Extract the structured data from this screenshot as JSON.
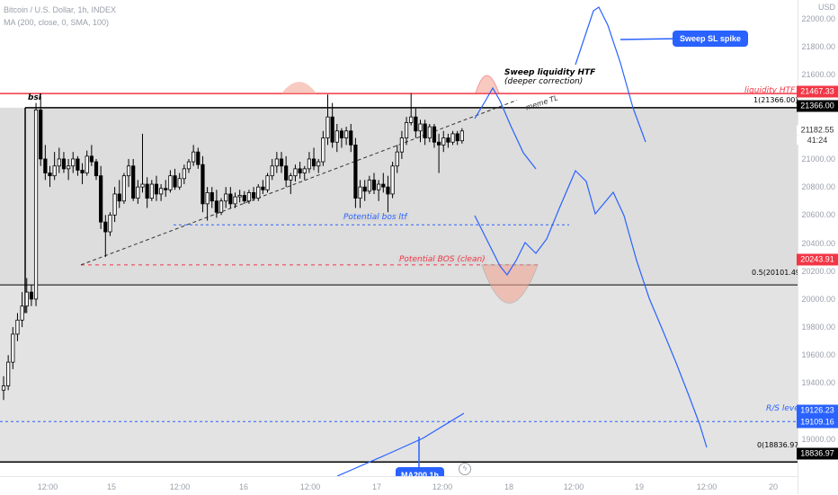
{
  "header": {
    "symbol_line": "Bitcoin / U.S. Dollar, 1h, INDEX",
    "indicator_line": "MA (200, close, 0, SMA, 100)"
  },
  "axis": {
    "currency": "USD",
    "price_ticks": [
      "22000.00",
      "21800.00",
      "21600.00",
      "21400.00",
      "21200.00",
      "21000.00",
      "20800.00",
      "20600.00",
      "20400.00",
      "20200.00",
      "20000.00",
      "19800.00",
      "19600.00",
      "19400.00",
      "19200.00",
      "19000.00"
    ],
    "time_ticks": [
      "12:00",
      "15",
      "12:00",
      "16",
      "12:00",
      "17",
      "12:00",
      "18",
      "12:00",
      "19",
      "12:00",
      "20"
    ]
  },
  "price_tags": {
    "liquidity": "21467.33",
    "level_1": "21366.00",
    "last_price": "21182.55",
    "countdown": "41:24",
    "bos": "20243.91",
    "rs_a": "19126.23",
    "rs_b": "19109.16",
    "level_0": "18836.97"
  },
  "colors": {
    "up": "#ffffff",
    "down": "#000000",
    "accent_blue": "#2962ff",
    "liquidity_red": "#f23645",
    "zone_gray": "#d9d9d9",
    "bubble_red": "#f4a896"
  },
  "annotations": {
    "bsl": "bsl",
    "sweep_title": "Sweep liquidity HTF",
    "sweep_sub": "(deeper correction)",
    "meme_tl": "meme TL",
    "liquidity_htf": "liquidity HTF",
    "fib_1": "1(21366.00)",
    "fib_05": "0.5(20101.49)",
    "fib_0": "0(18836.97)",
    "potential_bos_ltf": "Potential bos ltf",
    "potential_bos_clean": "Potential BOS (clean)",
    "rs_level": "R/S level",
    "sweep_sl_spike": "Sweep SL spike",
    "ma_label": "MA200 1h"
  },
  "candles": [
    [
      19350,
      19450,
      19280,
      19380
    ],
    [
      19380,
      19600,
      19350,
      19550
    ],
    [
      19550,
      19800,
      19500,
      19750
    ],
    [
      19750,
      19900,
      19700,
      19850
    ],
    [
      19850,
      20050,
      19800,
      19950
    ],
    [
      19950,
      20150,
      19900,
      20050
    ],
    [
      20050,
      20100,
      19950,
      20000
    ],
    [
      20000,
      21400,
      19950,
      21350
    ],
    [
      21350,
      21450,
      20950,
      21000
    ],
    [
      21000,
      21100,
      20850,
      20900
    ],
    [
      20900,
      20950,
      20800,
      20880
    ],
    [
      20880,
      21050,
      20850,
      20950
    ],
    [
      20950,
      21080,
      20900,
      21000
    ],
    [
      21000,
      21050,
      20900,
      20930
    ],
    [
      20930,
      21000,
      20850,
      20950
    ],
    [
      20950,
      21050,
      20900,
      21000
    ],
    [
      21000,
      21020,
      20880,
      20920
    ],
    [
      20920,
      20970,
      20820,
      20900
    ],
    [
      20900,
      21060,
      20880,
      21020
    ],
    [
      21020,
      21100,
      20950,
      20980
    ],
    [
      20980,
      21000,
      20850,
      20880
    ],
    [
      20880,
      20950,
      20500,
      20550
    ],
    [
      20550,
      20600,
      20300,
      20480
    ],
    [
      20480,
      20620,
      20450,
      20600
    ],
    [
      20600,
      20800,
      20550,
      20750
    ],
    [
      20750,
      20850,
      20650,
      20700
    ],
    [
      20700,
      20900,
      20680,
      20880
    ],
    [
      20880,
      21000,
      20800,
      20950
    ],
    [
      20950,
      21000,
      20700,
      20720
    ],
    [
      20720,
      20850,
      20680,
      20800
    ],
    [
      20800,
      21180,
      20760,
      20820
    ],
    [
      20820,
      20870,
      20650,
      20720
    ],
    [
      20720,
      20850,
      20700,
      20820
    ],
    [
      20820,
      20880,
      20700,
      20750
    ],
    [
      20750,
      20820,
      20700,
      20790
    ],
    [
      20790,
      20850,
      20730,
      20780
    ],
    [
      20780,
      20920,
      20760,
      20880
    ],
    [
      20880,
      20930,
      20780,
      20800
    ],
    [
      20800,
      20900,
      20780,
      20860
    ],
    [
      20860,
      20960,
      20820,
      20930
    ],
    [
      20930,
      21000,
      20900,
      20980
    ],
    [
      20980,
      21100,
      20950,
      21050
    ],
    [
      21050,
      21080,
      20930,
      20960
    ],
    [
      20960,
      21020,
      20620,
      20680
    ],
    [
      20680,
      20800,
      20560,
      20760
    ],
    [
      20760,
      20800,
      20650,
      20700
    ],
    [
      20700,
      20780,
      20580,
      20620
    ],
    [
      20620,
      20720,
      20600,
      20700
    ],
    [
      20700,
      20800,
      20650,
      20750
    ],
    [
      20750,
      20800,
      20650,
      20680
    ],
    [
      20680,
      20760,
      20650,
      20730
    ],
    [
      20730,
      20780,
      20690,
      20740
    ],
    [
      20740,
      20770,
      20680,
      20700
    ],
    [
      20700,
      20780,
      20680,
      20760
    ],
    [
      20760,
      20800,
      20700,
      20720
    ],
    [
      20720,
      20820,
      20700,
      20800
    ],
    [
      20800,
      20850,
      20750,
      20780
    ],
    [
      20780,
      20900,
      20760,
      20880
    ],
    [
      20880,
      21000,
      20850,
      20950
    ],
    [
      20950,
      21050,
      20900,
      21000
    ],
    [
      21000,
      21050,
      20900,
      20950
    ],
    [
      20950,
      21020,
      20800,
      20850
    ],
    [
      20850,
      20900,
      20750,
      20880
    ],
    [
      20880,
      20960,
      20840,
      20930
    ],
    [
      20930,
      20980,
      20860,
      20900
    ],
    [
      20900,
      20950,
      20850,
      20930
    ],
    [
      20930,
      21050,
      20900,
      21000
    ],
    [
      21000,
      21080,
      20920,
      20950
    ],
    [
      20950,
      21000,
      20900,
      20980
    ],
    [
      20980,
      21200,
      20950,
      21150
    ],
    [
      21150,
      21460,
      21100,
      21300
    ],
    [
      21300,
      21400,
      21080,
      21120
    ],
    [
      21120,
      21250,
      21050,
      21200
    ],
    [
      21200,
      21220,
      21080,
      21150
    ],
    [
      21150,
      21230,
      21100,
      21200
    ],
    [
      21200,
      21250,
      21050,
      21100
    ],
    [
      21100,
      21150,
      20650,
      20720
    ],
    [
      20720,
      20850,
      20650,
      20800
    ],
    [
      20800,
      20850,
      20700,
      20770
    ],
    [
      20770,
      20880,
      20750,
      20850
    ],
    [
      20850,
      20900,
      20750,
      20780
    ],
    [
      20780,
      20850,
      20700,
      20820
    ],
    [
      20820,
      20900,
      20760,
      20800
    ],
    [
      20800,
      20880,
      20620,
      20750
    ],
    [
      20750,
      20980,
      20720,
      20950
    ],
    [
      20950,
      21100,
      20900,
      21050
    ],
    [
      21050,
      21200,
      21000,
      21150
    ],
    [
      21150,
      21300,
      21100,
      21260
    ],
    [
      21260,
      21470,
      21240,
      21300
    ],
    [
      21300,
      21360,
      21150,
      21200
    ],
    [
      21200,
      21280,
      21120,
      21250
    ],
    [
      21250,
      21280,
      21100,
      21150
    ],
    [
      21150,
      21250,
      21120,
      21230
    ],
    [
      21230,
      21250,
      21080,
      21120
    ],
    [
      21120,
      21180,
      20900,
      21100
    ],
    [
      21100,
      21200,
      21050,
      21150
    ],
    [
      21150,
      21180,
      21080,
      21120
    ],
    [
      21120,
      21200,
      21100,
      21180
    ],
    [
      21180,
      21200,
      21100,
      21130
    ],
    [
      21130,
      21220,
      21110,
      21200
    ]
  ]
}
